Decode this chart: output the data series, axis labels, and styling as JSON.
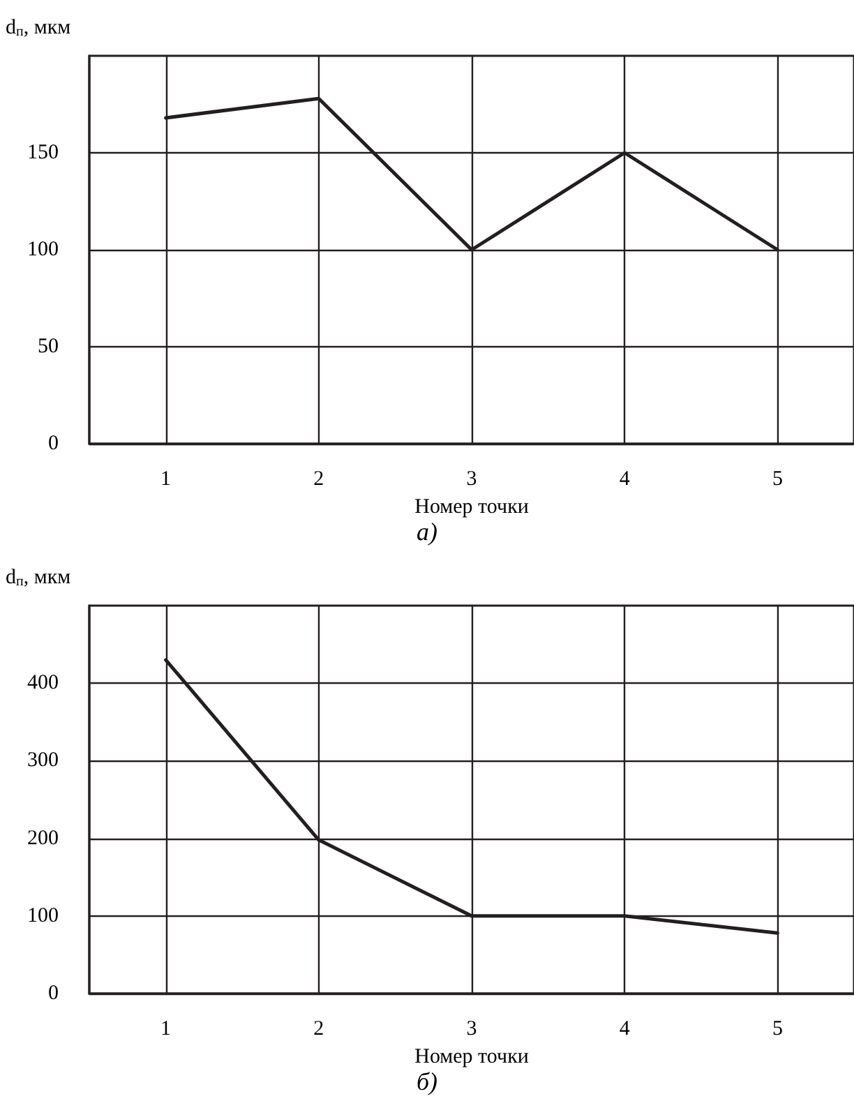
{
  "chart_data": [
    {
      "type": "line",
      "ylabel": "d$_{п}$, мкм",
      "xlabel": "Номер точки",
      "annotations": [
        "а)"
      ],
      "x": [
        1,
        2,
        3,
        4,
        5
      ],
      "series": [
        {
          "color": "#231f20",
          "values": [
            168,
            178,
            100,
            150,
            100
          ]
        }
      ],
      "xlim": [
        0.5,
        5.5
      ],
      "xticks": [
        1,
        2,
        3,
        4,
        5
      ],
      "ylim": [
        0,
        200
      ],
      "yticks": [
        0,
        50,
        100,
        150
      ],
      "grid": true,
      "marker": "none",
      "line_style": "solid"
    },
    {
      "type": "line",
      "ylabel": "d$_{п}$, мкм",
      "xlabel": "Номер точки",
      "annotations": [
        "б)"
      ],
      "x": [
        1,
        2,
        3,
        4,
        5
      ],
      "series": [
        {
          "color": "#231f20",
          "values": [
            430,
            198,
            100,
            100,
            78
          ]
        }
      ],
      "xlim": [
        0.5,
        5.5
      ],
      "xticks": [
        1,
        2,
        3,
        4,
        5
      ],
      "ylim": [
        0,
        500
      ],
      "yticks": [
        0,
        100,
        200,
        300,
        400
      ],
      "grid": true,
      "marker": "none",
      "line_style": "solid"
    }
  ]
}
